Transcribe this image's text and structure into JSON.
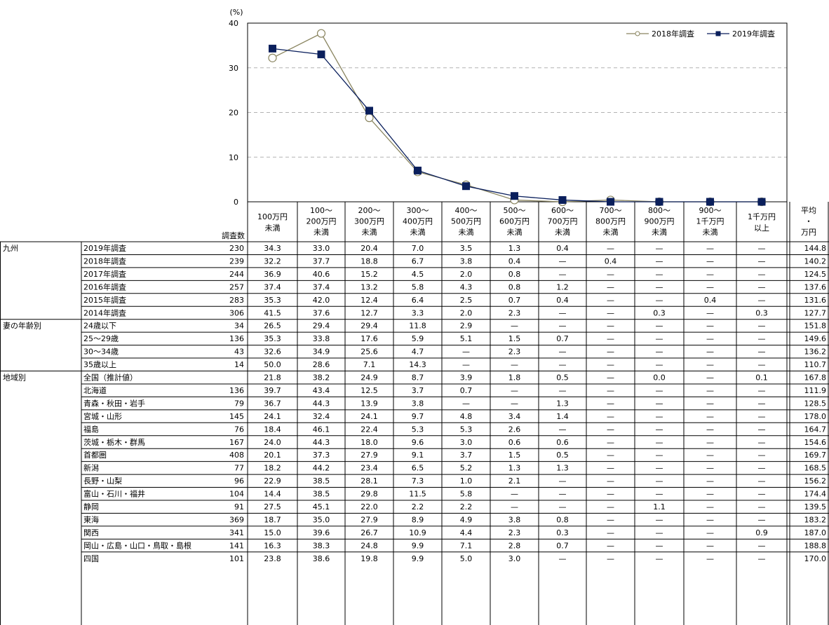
{
  "chart_data": {
    "type": "line",
    "y_unit": "(%)",
    "yticks": [
      "40",
      "30",
      "20",
      "10",
      "0"
    ],
    "ylim": [
      0,
      40
    ],
    "grid": true,
    "legend_position": "top-right",
    "categories": [
      "100万円未満",
      "100～200万円未満",
      "200～300万円未満",
      "300～400万円未満",
      "400～500万円未満",
      "500～600万円未満",
      "600～700万円未満",
      "700～800万円未満",
      "800～900万円未満",
      "900～1千万円未満",
      "1千万円以上"
    ],
    "series": [
      {
        "name": "2018年調査",
        "color": "#8a8560",
        "marker": "open-circle",
        "values": [
          32.2,
          37.7,
          18.8,
          6.7,
          3.8,
          0.4,
          0,
          0.4,
          0,
          0,
          0
        ]
      },
      {
        "name": "2019年調査",
        "color": "#0a1f5c",
        "marker": "filled-square",
        "values": [
          34.3,
          33.0,
          20.4,
          7.0,
          3.5,
          1.3,
          0.4,
          0,
          0,
          0,
          0
        ]
      }
    ]
  },
  "table": {
    "survey_count_header": "調査数",
    "columns": [
      [
        "100万円",
        "未満"
      ],
      [
        "100～",
        "200万円",
        "未満"
      ],
      [
        "200～",
        "300万円",
        "未満"
      ],
      [
        "300～",
        "400万円",
        "未満"
      ],
      [
        "400～",
        "500万円",
        "未満"
      ],
      [
        "500～",
        "600万円",
        "未満"
      ],
      [
        "600～",
        "700万円",
        "未満"
      ],
      [
        "700～",
        "800万円",
        "未満"
      ],
      [
        "800～",
        "900万円",
        "未満"
      ],
      [
        "900～",
        "1千万円",
        "未満"
      ],
      [
        "1千万円",
        "以上"
      ]
    ],
    "avg_header": [
      "平均",
      "・",
      "万円"
    ],
    "groups": [
      {
        "name": "九州",
        "rows": [
          {
            "label": "2019年調査",
            "n": "230",
            "v": [
              "34.3",
              "33.0",
              "20.4",
              "7.0",
              "3.5",
              "1.3",
              "0.4",
              "—",
              "—",
              "—",
              "—"
            ],
            "avg": "144.8"
          },
          {
            "label": "2018年調査",
            "n": "239",
            "v": [
              "32.2",
              "37.7",
              "18.8",
              "6.7",
              "3.8",
              "0.4",
              "—",
              "0.4",
              "—",
              "—",
              "—"
            ],
            "avg": "140.2"
          },
          {
            "label": "2017年調査",
            "n": "244",
            "v": [
              "36.9",
              "40.6",
              "15.2",
              "4.5",
              "2.0",
              "0.8",
              "—",
              "—",
              "—",
              "—",
              "—"
            ],
            "avg": "124.5"
          },
          {
            "label": "2016年調査",
            "n": "257",
            "v": [
              "37.4",
              "37.4",
              "13.2",
              "5.8",
              "4.3",
              "0.8",
              "1.2",
              "—",
              "—",
              "—",
              "—"
            ],
            "avg": "137.6"
          },
          {
            "label": "2015年調査",
            "n": "283",
            "v": [
              "35.3",
              "42.0",
              "12.4",
              "6.4",
              "2.5",
              "0.7",
              "0.4",
              "—",
              "—",
              "0.4",
              "—"
            ],
            "avg": "131.6"
          },
          {
            "label": "2014年調査",
            "n": "306",
            "v": [
              "41.5",
              "37.6",
              "12.7",
              "3.3",
              "2.0",
              "2.3",
              "—",
              "—",
              "0.3",
              "—",
              "0.3"
            ],
            "avg": "127.7"
          }
        ]
      },
      {
        "name": "妻の年齢別",
        "rows": [
          {
            "label": "24歳以下",
            "n": "34",
            "v": [
              "26.5",
              "29.4",
              "29.4",
              "11.8",
              "2.9",
              "—",
              "—",
              "—",
              "—",
              "—",
              "—"
            ],
            "avg": "151.8"
          },
          {
            "label": "25～29歳",
            "n": "136",
            "v": [
              "35.3",
              "33.8",
              "17.6",
              "5.9",
              "5.1",
              "1.5",
              "0.7",
              "—",
              "—",
              "—",
              "—"
            ],
            "avg": "149.6"
          },
          {
            "label": "30～34歳",
            "n": "43",
            "v": [
              "32.6",
              "34.9",
              "25.6",
              "4.7",
              "—",
              "2.3",
              "—",
              "—",
              "—",
              "—",
              "—"
            ],
            "avg": "136.2"
          },
          {
            "label": "35歳以上",
            "n": "14",
            "v": [
              "50.0",
              "28.6",
              "7.1",
              "14.3",
              "—",
              "—",
              "—",
              "—",
              "—",
              "—",
              "—"
            ],
            "avg": "110.7"
          }
        ]
      },
      {
        "name": "地域別",
        "rows": [
          {
            "label": "全国（推計値）",
            "n": "",
            "v": [
              "21.8",
              "38.2",
              "24.9",
              "8.7",
              "3.9",
              "1.8",
              "0.5",
              "—",
              "0.0",
              "—",
              "0.1"
            ],
            "avg": "167.8"
          },
          {
            "label": "北海道",
            "n": "136",
            "v": [
              "39.7",
              "43.4",
              "12.5",
              "3.7",
              "0.7",
              "—",
              "—",
              "—",
              "—",
              "—",
              "—"
            ],
            "avg": "111.9"
          },
          {
            "label": "青森・秋田・岩手",
            "n": "79",
            "v": [
              "36.7",
              "44.3",
              "13.9",
              "3.8",
              "—",
              "—",
              "1.3",
              "—",
              "—",
              "—",
              "—"
            ],
            "avg": "128.5"
          },
          {
            "label": "宮城・山形",
            "n": "145",
            "v": [
              "24.1",
              "32.4",
              "24.1",
              "9.7",
              "4.8",
              "3.4",
              "1.4",
              "—",
              "—",
              "—",
              "—"
            ],
            "avg": "178.0"
          },
          {
            "label": "福島",
            "n": "76",
            "v": [
              "18.4",
              "46.1",
              "22.4",
              "5.3",
              "5.3",
              "2.6",
              "—",
              "—",
              "—",
              "—",
              "—"
            ],
            "avg": "164.7"
          },
          {
            "label": "茨城・栃木・群馬",
            "n": "167",
            "v": [
              "24.0",
              "44.3",
              "18.0",
              "9.6",
              "3.0",
              "0.6",
              "0.6",
              "—",
              "—",
              "—",
              "—"
            ],
            "avg": "154.6"
          },
          {
            "label": "首都圏",
            "n": "408",
            "v": [
              "20.1",
              "37.3",
              "27.9",
              "9.1",
              "3.7",
              "1.5",
              "0.5",
              "—",
              "—",
              "—",
              "—"
            ],
            "avg": "169.7"
          },
          {
            "label": "新潟",
            "n": "77",
            "v": [
              "18.2",
              "44.2",
              "23.4",
              "6.5",
              "5.2",
              "1.3",
              "1.3",
              "—",
              "—",
              "—",
              "—"
            ],
            "avg": "168.5"
          },
          {
            "label": "長野・山梨",
            "n": "96",
            "v": [
              "22.9",
              "38.5",
              "28.1",
              "7.3",
              "1.0",
              "2.1",
              "—",
              "—",
              "—",
              "—",
              "—"
            ],
            "avg": "156.2"
          },
          {
            "label": "富山・石川・福井",
            "n": "104",
            "v": [
              "14.4",
              "38.5",
              "29.8",
              "11.5",
              "5.8",
              "—",
              "—",
              "—",
              "—",
              "—",
              "—"
            ],
            "avg": "174.4"
          },
          {
            "label": "静岡",
            "n": "91",
            "v": [
              "27.5",
              "45.1",
              "22.0",
              "2.2",
              "2.2",
              "—",
              "—",
              "—",
              "1.1",
              "—",
              "—"
            ],
            "avg": "139.5"
          },
          {
            "label": "東海",
            "n": "369",
            "v": [
              "18.7",
              "35.0",
              "27.9",
              "8.9",
              "4.9",
              "3.8",
              "0.8",
              "—",
              "—",
              "—",
              "—"
            ],
            "avg": "183.2"
          },
          {
            "label": "関西",
            "n": "341",
            "v": [
              "15.0",
              "39.6",
              "26.7",
              "10.9",
              "4.4",
              "2.3",
              "0.3",
              "—",
              "—",
              "—",
              "0.9"
            ],
            "avg": "187.0"
          },
          {
            "label": "岡山・広島・山口・鳥取・島根",
            "n": "141",
            "v": [
              "16.3",
              "38.3",
              "24.8",
              "9.9",
              "7.1",
              "2.8",
              "0.7",
              "—",
              "—",
              "—",
              "—"
            ],
            "avg": "188.8"
          },
          {
            "label": "四国",
            "n": "101",
            "v": [
              "23.8",
              "38.6",
              "19.8",
              "9.9",
              "5.0",
              "3.0",
              "—",
              "—",
              "—",
              "—",
              "—"
            ],
            "avg": "170.0"
          }
        ]
      }
    ]
  }
}
